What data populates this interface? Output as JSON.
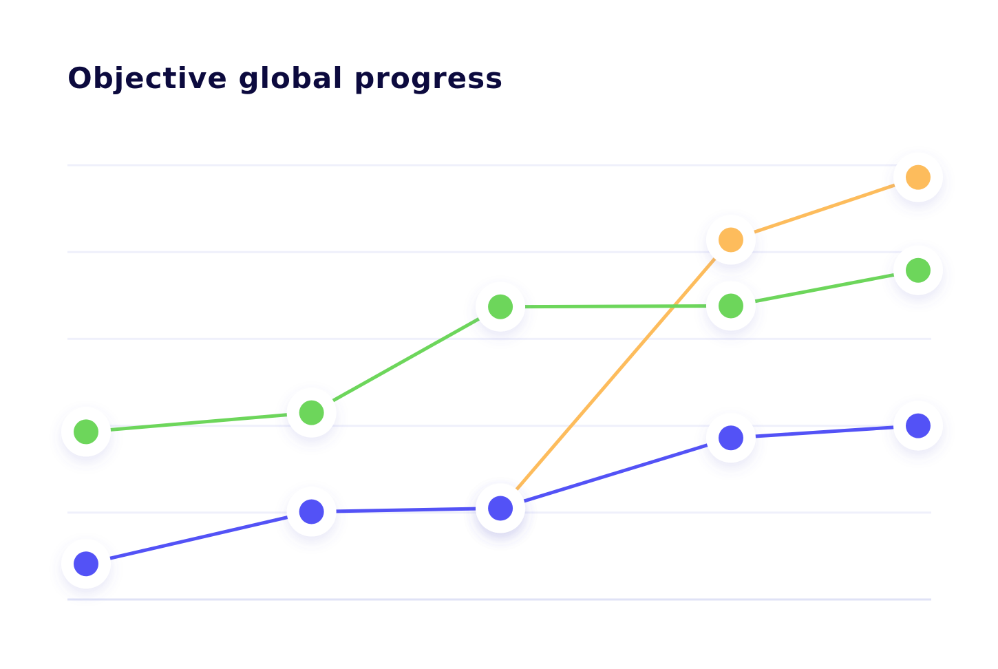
{
  "chart_data": {
    "type": "line",
    "title": "Objective global progress",
    "x": [
      0,
      27.1,
      49.8,
      77.5,
      100
    ],
    "xlim": [
      0,
      100
    ],
    "ylim": [
      0,
      5
    ],
    "yticks": [
      0,
      1,
      2,
      3,
      4,
      5
    ],
    "grid": true,
    "series": [
      {
        "color": "#fdbc5c",
        "values": [
          null,
          null,
          1.05,
          4.14,
          4.86
        ]
      },
      {
        "color": "#6dd65b",
        "values": [
          1.93,
          2.15,
          3.37,
          3.38,
          3.79
        ]
      },
      {
        "color": "#5352f6",
        "values": [
          0.41,
          1.01,
          1.05,
          1.86,
          2.0
        ]
      }
    ]
  }
}
